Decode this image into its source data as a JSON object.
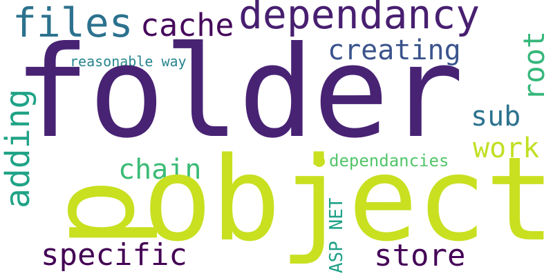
{
  "words": {
    "folder": "folder",
    "object": "object",
    "dependancy": "dependancy",
    "files": "files",
    "cache": "cache",
    "creating": "creating",
    "reasonable_way": "reasonable way",
    "root": "root",
    "sub": "sub",
    "work": "work",
    "adding": "adding",
    "chain": "chain",
    "dependancies": "dependancies",
    "asp_net": "ASP NET",
    "specific": "specific",
    "store": "store",
    "p": "p"
  },
  "colors": {
    "background": "#ffffff",
    "dark_purple": "#482374",
    "deep_purple": "#440154",
    "blue": "#2c728e",
    "indigo": "#3a548c",
    "teal": "#25858e",
    "green": "#35b779",
    "aqua_green": "#20a386",
    "light_green": "#52c569",
    "lime": "#c8e020"
  }
}
